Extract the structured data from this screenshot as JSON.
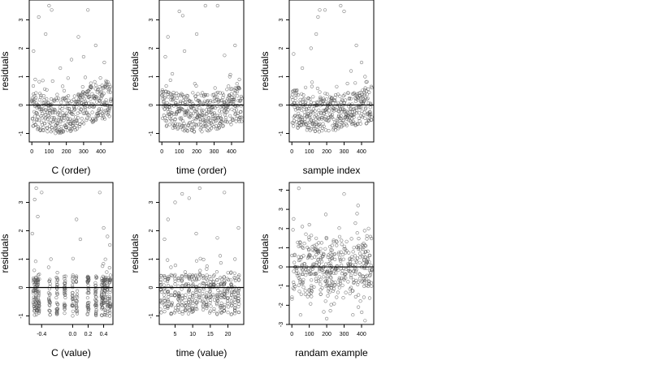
{
  "chart_data": [
    {
      "type": "scatter",
      "xlabel": "C (order)",
      "ylabel": "residuals",
      "xlim": [
        -15,
        470
      ],
      "ylim": [
        -1.3,
        3.7
      ],
      "xticks": [
        0,
        100,
        200,
        300,
        400
      ],
      "xtick_labels": [
        "0",
        "100",
        "200",
        "300",
        "400"
      ],
      "yticks": [
        -1,
        0,
        1,
        2,
        3
      ],
      "ytick_labels": [
        "-1",
        "0",
        "1",
        "2",
        "3"
      ],
      "hline": 0,
      "outliers": [
        [
          10,
          1.9
        ],
        [
          20,
          0.9
        ],
        [
          40,
          3.1
        ],
        [
          80,
          2.5
        ],
        [
          100,
          3.5
        ],
        [
          115,
          3.35
        ],
        [
          165,
          1.3
        ],
        [
          210,
          0.95
        ],
        [
          230,
          1.6
        ],
        [
          270,
          2.4
        ],
        [
          300,
          1.7
        ],
        [
          325,
          3.35
        ],
        [
          370,
          2.1
        ],
        [
          420,
          1.5
        ],
        [
          430,
          0.85
        ]
      ]
    },
    {
      "type": "scatter",
      "xlabel": "time (order)",
      "ylabel": "residuals",
      "xlim": [
        -15,
        470
      ],
      "ylim": [
        -1.3,
        3.7
      ],
      "xticks": [
        0,
        100,
        200,
        300,
        400
      ],
      "xtick_labels": [
        "0",
        "100",
        "200",
        "300",
        "400"
      ],
      "yticks": [
        -1,
        0,
        1,
        2,
        3
      ],
      "ytick_labels": [
        "-1",
        "0",
        "1",
        "2",
        "3"
      ],
      "hline": 0,
      "outliers": [
        [
          20,
          1.7
        ],
        [
          35,
          2.4
        ],
        [
          60,
          1.1
        ],
        [
          100,
          3.3
        ],
        [
          120,
          3.15
        ],
        [
          130,
          1.9
        ],
        [
          200,
          2.5
        ],
        [
          250,
          3.5
        ],
        [
          320,
          3.5
        ],
        [
          360,
          1.75
        ],
        [
          390,
          1.0
        ],
        [
          420,
          2.1
        ],
        [
          445,
          0.9
        ]
      ]
    },
    {
      "type": "scatter",
      "xlabel": "sample index",
      "ylabel": "residuals",
      "xlim": [
        -15,
        470
      ],
      "ylim": [
        -1.3,
        3.7
      ],
      "xticks": [
        0,
        100,
        200,
        300,
        400
      ],
      "xtick_labels": [
        "0",
        "100",
        "200",
        "300",
        "400"
      ],
      "yticks": [
        -1,
        0,
        1,
        2,
        3
      ],
      "ytick_labels": [
        "-1",
        "0",
        "1",
        "2",
        "3"
      ],
      "hline": 0,
      "outliers": [
        [
          10,
          1.8
        ],
        [
          60,
          1.3
        ],
        [
          110,
          2.0
        ],
        [
          140,
          2.5
        ],
        [
          150,
          3.1
        ],
        [
          160,
          3.35
        ],
        [
          190,
          3.35
        ],
        [
          280,
          3.5
        ],
        [
          300,
          3.3
        ],
        [
          340,
          1.2
        ],
        [
          370,
          2.1
        ],
        [
          400,
          1.5
        ],
        [
          420,
          1.0
        ]
      ]
    },
    {
      "type": "scatter",
      "xlabel": "C (value)",
      "ylabel": "residuals",
      "xlim": [
        -0.56,
        0.52
      ],
      "ylim": [
        -1.3,
        3.7
      ],
      "xticks": [
        -0.4,
        0.0,
        0.2,
        0.4
      ],
      "xtick_labels": [
        "-0.4",
        "0.0",
        "0.2",
        "0.4"
      ],
      "yticks": [
        -1,
        0,
        1,
        2,
        3
      ],
      "ytick_labels": [
        "-1",
        "0",
        "1",
        "2",
        "3"
      ],
      "hline": 0,
      "outliers": [
        [
          -0.52,
          1.9
        ],
        [
          -0.49,
          3.1
        ],
        [
          -0.47,
          3.5
        ],
        [
          -0.45,
          2.5
        ],
        [
          -0.4,
          3.35
        ],
        [
          -0.28,
          1.0
        ],
        [
          0.05,
          2.4
        ],
        [
          0.1,
          1.7
        ],
        [
          0.35,
          3.35
        ],
        [
          0.4,
          2.1
        ],
        [
          0.45,
          1.8
        ],
        [
          0.48,
          1.5
        ]
      ]
    },
    {
      "type": "scatter",
      "xlabel": "time (value)",
      "ylabel": "residuals",
      "xlim": [
        0.5,
        24.5
      ],
      "ylim": [
        -1.3,
        3.7
      ],
      "xticks": [
        5,
        10,
        15,
        20
      ],
      "xtick_labels": [
        "5",
        "10",
        "15",
        "20"
      ],
      "yticks": [
        -1,
        0,
        1,
        2,
        3
      ],
      "ytick_labels": [
        "-1",
        "0",
        "1",
        "2",
        "3"
      ],
      "hline": 0,
      "outliers": [
        [
          2,
          1.7
        ],
        [
          3,
          2.4
        ],
        [
          5,
          3.0
        ],
        [
          7,
          3.3
        ],
        [
          9,
          3.15
        ],
        [
          11,
          1.9
        ],
        [
          12,
          3.5
        ],
        [
          17,
          1.75
        ],
        [
          19,
          3.35
        ],
        [
          22,
          1.0
        ],
        [
          23,
          2.1
        ]
      ]
    },
    {
      "type": "scatter",
      "xlabel": "randam example",
      "ylabel": "residuals",
      "xlim": [
        -15,
        470
      ],
      "ylim": [
        -3.0,
        4.4
      ],
      "xticks": [
        0,
        100,
        200,
        300,
        400
      ],
      "xtick_labels": [
        "0",
        "100",
        "200",
        "300",
        "400"
      ],
      "yticks": [
        -3,
        -2,
        -1,
        0,
        1,
        2,
        3,
        4
      ],
      "ytick_labels": [
        "-3",
        "-2",
        "-1",
        "0",
        "1",
        "2",
        "3",
        "4"
      ],
      "hline": 0,
      "outliers": [
        [
          10,
          2.5
        ],
        [
          40,
          4.1
        ],
        [
          60,
          2.1
        ],
        [
          100,
          2.2
        ],
        [
          300,
          3.8
        ],
        [
          380,
          3.2
        ],
        [
          420,
          -2.8
        ],
        [
          440,
          2.0
        ],
        [
          50,
          -2.5
        ],
        [
          200,
          -2.7
        ],
        [
          350,
          -2.5
        ]
      ]
    }
  ]
}
